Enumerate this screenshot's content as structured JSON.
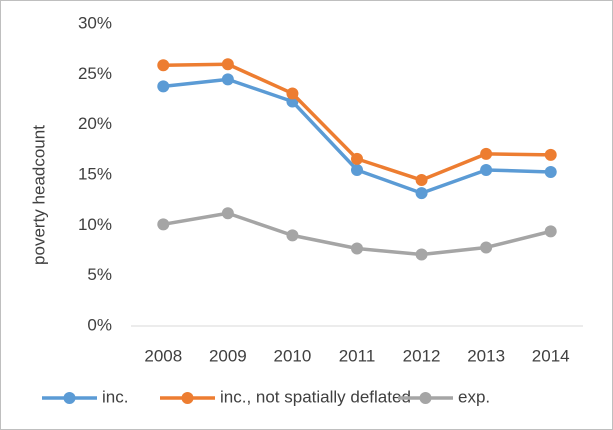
{
  "chart_data": {
    "type": "line",
    "y_label": "poverty headcount",
    "categories": [
      "2008",
      "2009",
      "2010",
      "2011",
      "2012",
      "2013",
      "2014"
    ],
    "series": [
      {
        "name": "inc.",
        "color": "#5b9bd5",
        "values": [
          23.8,
          24.5,
          22.3,
          15.5,
          13.2,
          15.5,
          15.3
        ]
      },
      {
        "name": "inc., not spatially deflated",
        "color": "#ed7d31",
        "values": [
          25.9,
          26.0,
          23.1,
          16.6,
          14.5,
          17.1,
          17.0
        ]
      },
      {
        "name": "exp.",
        "color": "#a5a5a5",
        "values": [
          10.1,
          11.2,
          9.0,
          7.7,
          7.1,
          7.8,
          9.4
        ]
      }
    ],
    "ylim": [
      0,
      30
    ],
    "yticks": [
      {
        "value": 0,
        "label": "0%"
      },
      {
        "value": 5,
        "label": "5%"
      },
      {
        "value": 10,
        "label": "10%"
      },
      {
        "value": 15,
        "label": "15%"
      },
      {
        "value": 20,
        "label": "20%"
      },
      {
        "value": 25,
        "label": "25%"
      },
      {
        "value": 30,
        "label": "30%"
      }
    ],
    "grid": false,
    "legend": "bottom"
  }
}
